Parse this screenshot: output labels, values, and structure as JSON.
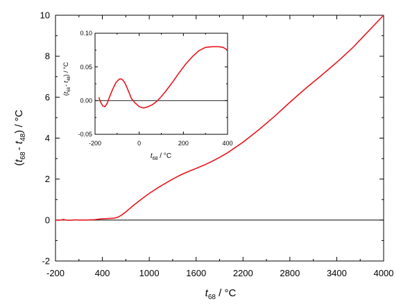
{
  "chart_data": [
    {
      "type": "line",
      "title": "",
      "xlabel": "t68 / °C",
      "ylabel": "(t68 - t48) / °C",
      "xlabel_parts": {
        "var": "t",
        "sub": "68",
        "unit": " / °C"
      },
      "ylabel_parts": {
        "open": "(",
        "var1": "t",
        "sub1": "68",
        "minus": "- ",
        "var2": "t",
        "sub2": "48",
        "close": ") / °C"
      },
      "xlim": [
        -200,
        4000
      ],
      "ylim": [
        -2,
        10
      ],
      "xticks": [
        "-200",
        "400",
        "1000",
        "1600",
        "2200",
        "2800",
        "3400",
        "4000"
      ],
      "yticks": [
        "-2",
        "0",
        "2",
        "4",
        "6",
        "8",
        "10"
      ],
      "grid": false,
      "zero_line": true,
      "series": [
        {
          "color": "#e8141c",
          "x": [
            -200,
            -150,
            -100,
            -50,
            0,
            50,
            100,
            200,
            300,
            400,
            450,
            500,
            550,
            600,
            650,
            700,
            800,
            900,
            1000,
            1100,
            1200,
            1300,
            1400,
            1500,
            1600,
            1700,
            1800,
            1900,
            2000,
            2200,
            2400,
            2600,
            2800,
            3000,
            3200,
            3400,
            3600,
            3800,
            4000
          ],
          "y": [
            0.0,
            -0.01,
            0.03,
            -0.01,
            -0.01,
            0.01,
            0.0,
            0.0,
            0.02,
            0.06,
            0.07,
            0.08,
            0.09,
            0.14,
            0.25,
            0.4,
            0.72,
            1.02,
            1.3,
            1.55,
            1.78,
            2.0,
            2.2,
            2.37,
            2.52,
            2.68,
            2.86,
            3.06,
            3.28,
            3.8,
            4.4,
            5.05,
            5.75,
            6.42,
            7.05,
            7.7,
            8.4,
            9.2,
            10.0
          ]
        }
      ]
    },
    {
      "type": "line",
      "title": "",
      "xlabel": "t68 / °C",
      "ylabel": "(t68 - t48) / °C",
      "xlabel_parts": {
        "var": "t",
        "sub": "68",
        "unit": " / °C"
      },
      "ylabel_parts": {
        "open": "(",
        "var1": "t",
        "sub1": "68",
        "minus": "- ",
        "var2": "t",
        "sub2": "48",
        "close": ") / °C"
      },
      "xlim": [
        -200,
        400
      ],
      "ylim": [
        -0.05,
        0.1
      ],
      "xticks": [
        "-200",
        "0",
        "200",
        "400"
      ],
      "yticks": [
        "-0.05",
        "0.00",
        "0.05",
        "0.10"
      ],
      "grid": false,
      "zero_line": true,
      "series": [
        {
          "color": "#e8141c",
          "x": [
            -183,
            -175,
            -165,
            -155,
            -145,
            -135,
            -120,
            -105,
            -90,
            -80,
            -70,
            -60,
            -50,
            -35,
            -20,
            0,
            20,
            40,
            60,
            80,
            100,
            120,
            150,
            180,
            210,
            240,
            270,
            300,
            330,
            360,
            380,
            400
          ],
          "y": [
            0.005,
            -0.002,
            -0.008,
            -0.009,
            -0.004,
            0.005,
            0.017,
            0.027,
            0.032,
            0.032,
            0.029,
            0.023,
            0.015,
            0.003,
            -0.003,
            -0.009,
            -0.011,
            -0.009,
            -0.006,
            -0.001,
            0.006,
            0.014,
            0.027,
            0.041,
            0.054,
            0.065,
            0.074,
            0.079,
            0.08,
            0.08,
            0.079,
            0.075
          ]
        }
      ]
    }
  ]
}
